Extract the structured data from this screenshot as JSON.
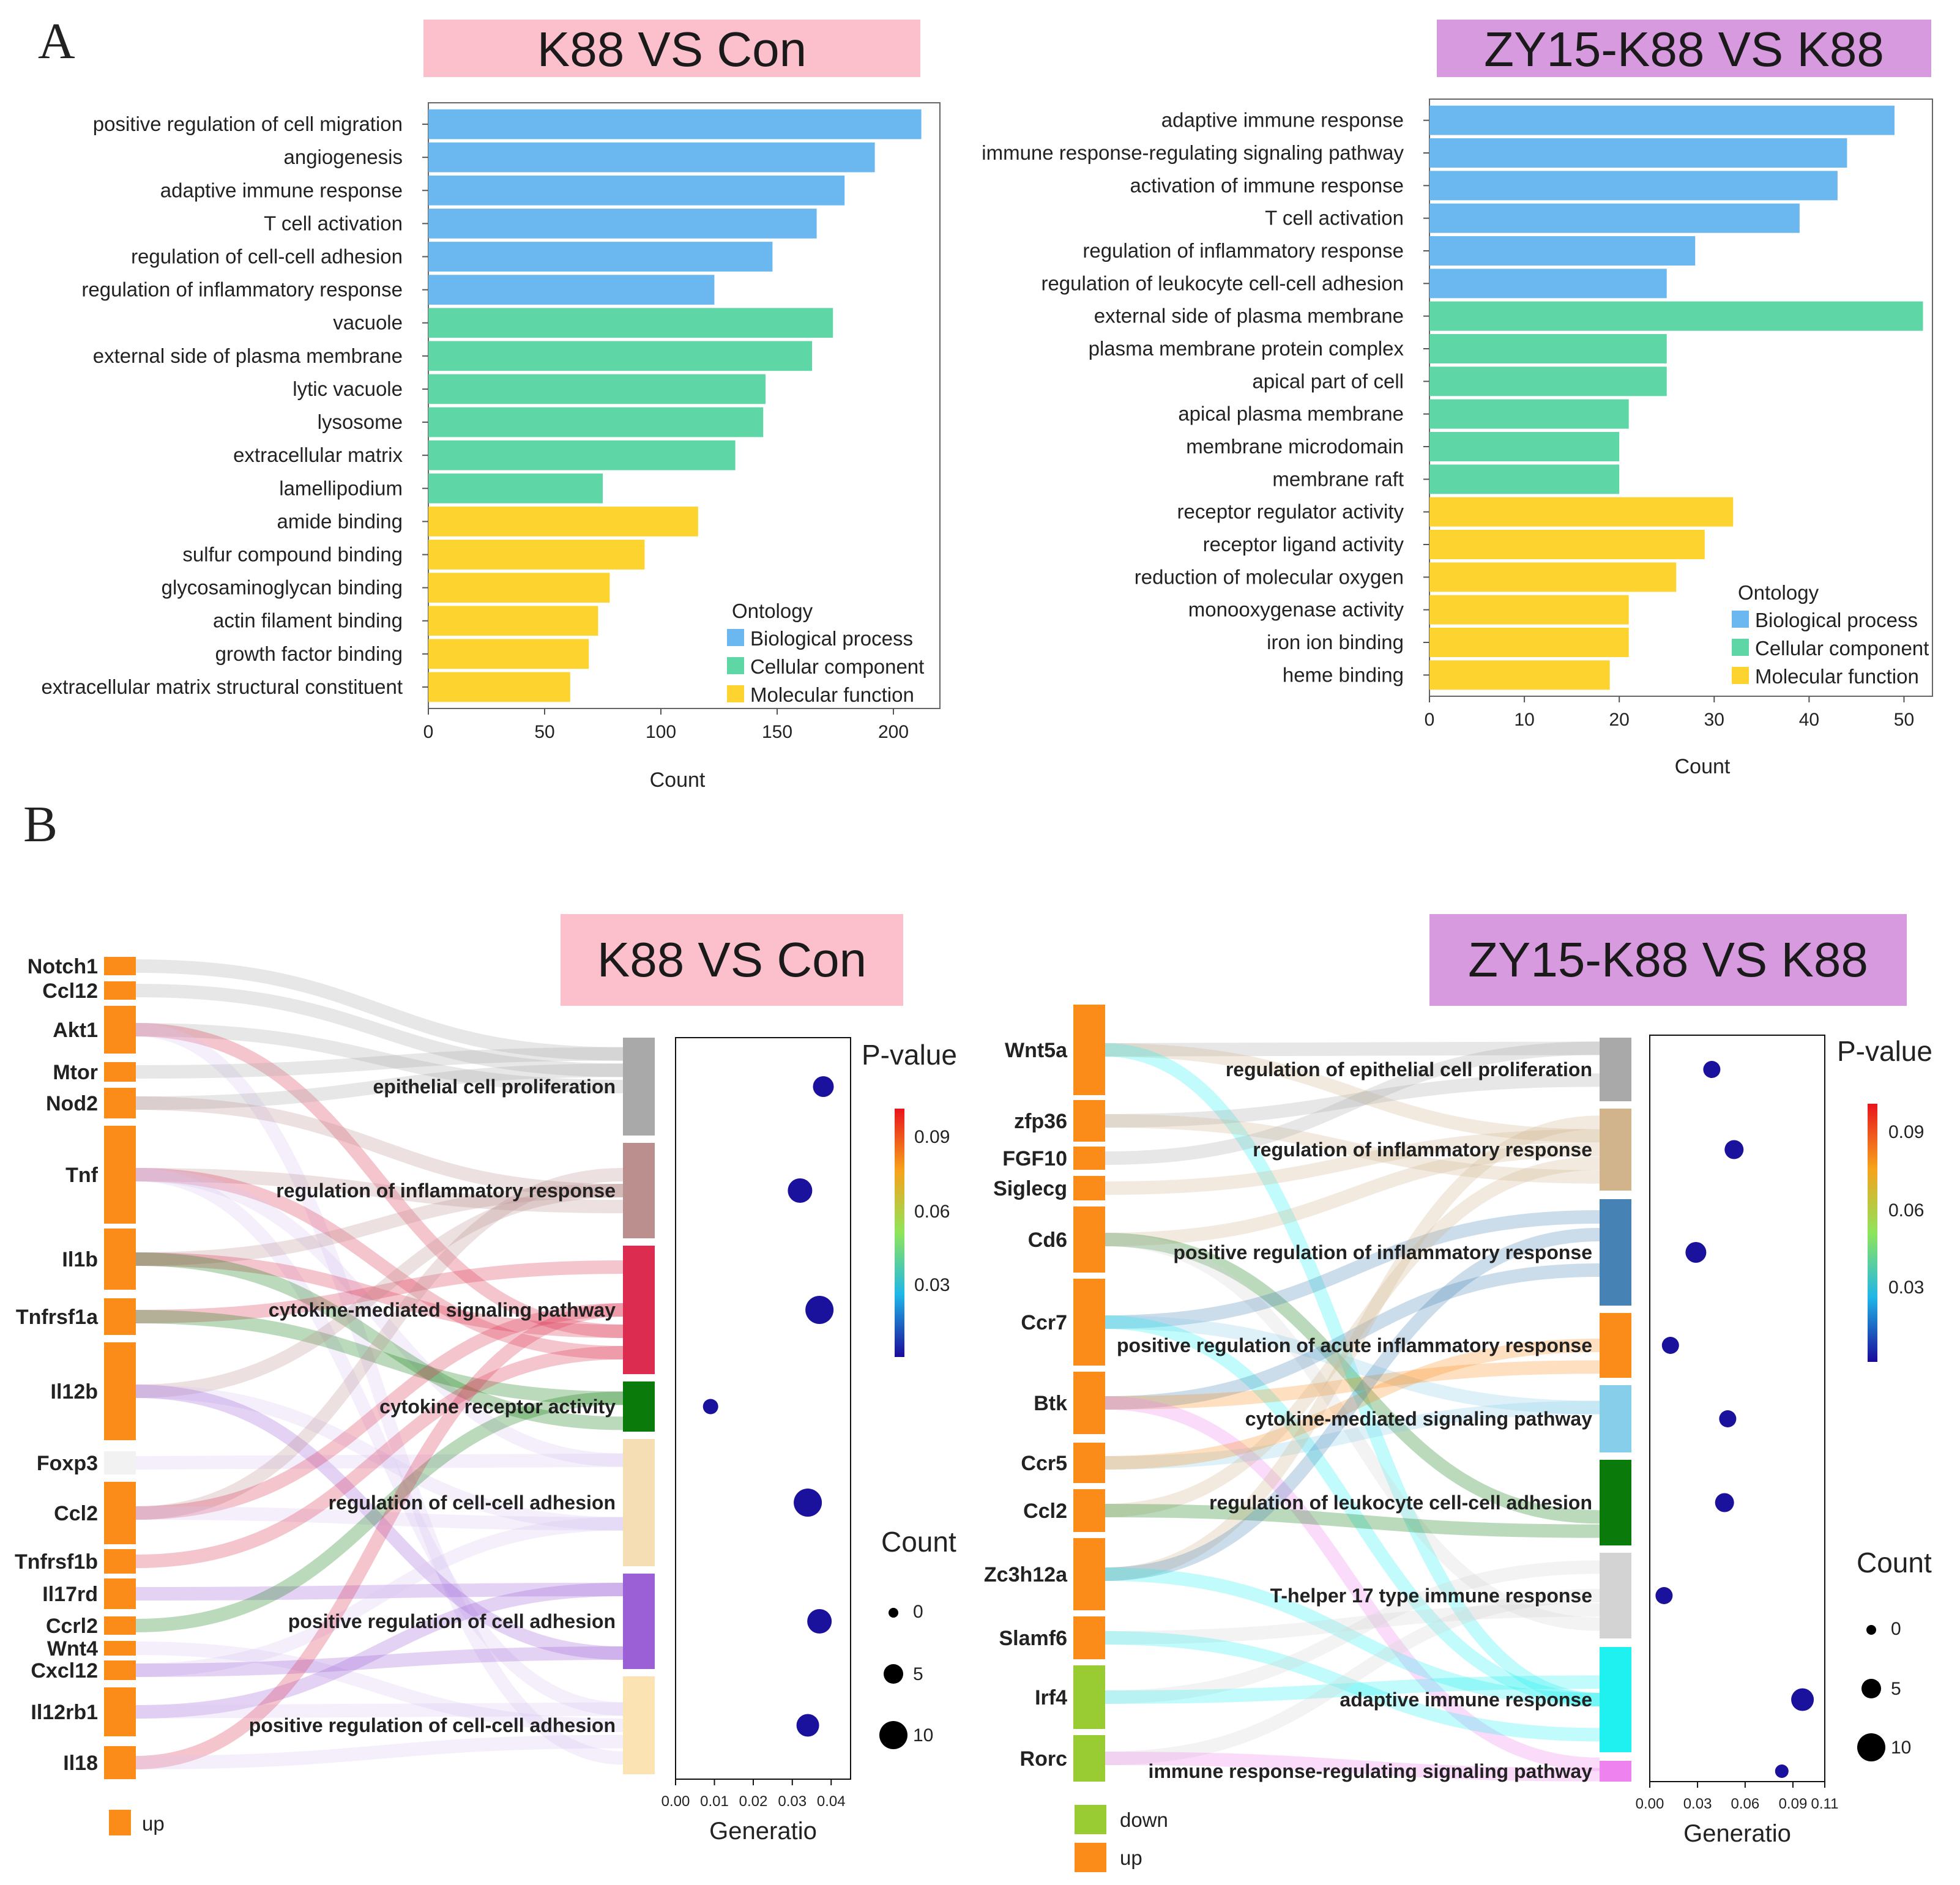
{
  "panel_labels": {
    "a": "A",
    "b": "B"
  },
  "colors": {
    "biological_process": "#6ab8ef",
    "cellular_component": "#5ed6a5",
    "molecular_function": "#fdd330",
    "up": "#fb8c1a",
    "down": "#99cc33",
    "dot": "#0a1a9a",
    "title_pink": "#fbc0cb",
    "title_purple": "#d79ade"
  },
  "chart_data": [
    {
      "id": "go_k88",
      "type": "bar",
      "orientation": "horizontal",
      "title": "K88 VS Con",
      "xlabel": "Count",
      "xlim": [
        0,
        220
      ],
      "xticks": [
        0,
        50,
        100,
        150,
        200
      ],
      "legend_title": "Ontology",
      "legend": [
        "Biological process",
        "Cellular component",
        "Molecular function"
      ],
      "categories": [
        "positive regulation of cell migration",
        "angiogenesis",
        "adaptive immune response",
        "T cell activation",
        "regulation of cell-cell adhesion",
        "regulation of inflammatory response",
        "vacuole",
        "external side of plasma membrane",
        "lytic vacuole",
        "lysosome",
        "extracellular matrix",
        "lamellipodium",
        "amide binding",
        "sulfur compound binding",
        "glycosaminoglycan binding",
        "actin filament binding",
        "growth factor binding",
        "extracellular matrix structural constituent"
      ],
      "values": [
        212,
        192,
        179,
        167,
        148,
        123,
        174,
        165,
        145,
        144,
        132,
        75,
        116,
        93,
        78,
        73,
        69,
        61
      ],
      "ontology": [
        0,
        0,
        0,
        0,
        0,
        0,
        1,
        1,
        1,
        1,
        1,
        1,
        2,
        2,
        2,
        2,
        2,
        2
      ]
    },
    {
      "id": "go_zy15",
      "type": "bar",
      "orientation": "horizontal",
      "title": "ZY15-K88 VS K88",
      "xlabel": "Count",
      "xlim": [
        0,
        53
      ],
      "xticks": [
        0,
        10,
        20,
        30,
        40,
        50
      ],
      "legend_title": "Ontology",
      "legend": [
        "Biological process",
        "Cellular component",
        "Molecular function"
      ],
      "categories": [
        "adaptive immune response",
        "immune response-regulating signaling pathway",
        "activation of immune response",
        "T cell activation",
        "regulation of inflammatory response",
        "regulation of leukocyte cell-cell adhesion",
        "external side of plasma membrane",
        "plasma membrane protein complex",
        "apical part of cell",
        "apical plasma membrane",
        "membrane microdomain",
        "membrane raft",
        "receptor regulator activity",
        "receptor ligand activity",
        "reduction of molecular oxygen",
        "monooxygenase activity",
        "iron ion binding",
        "heme binding"
      ],
      "values": [
        49,
        44,
        43,
        39,
        28,
        25,
        52,
        25,
        25,
        21,
        20,
        20,
        32,
        29,
        26,
        21,
        21,
        19
      ],
      "ontology": [
        0,
        0,
        0,
        0,
        0,
        0,
        1,
        1,
        1,
        1,
        1,
        1,
        2,
        2,
        2,
        2,
        2,
        2
      ]
    },
    {
      "id": "sankey_k88",
      "type": "scatter",
      "subtype": "sankey-dot",
      "title": "K88 VS Con",
      "xlabel": "Generatio",
      "xlim": [
        0,
        0.045
      ],
      "xticks": [
        "0.00",
        "0.01",
        "0.02",
        "0.03",
        "0.04"
      ],
      "pvalue_legend_title": "P-value",
      "pvalue_ticks": [
        "0.09",
        "0.06",
        "0.03"
      ],
      "pvalue_range": [
        0,
        0.1
      ],
      "count_legend_title": "Count",
      "count_ticks": [
        "0",
        "5",
        "10"
      ],
      "reg_legend": [
        "up"
      ],
      "genes": [
        {
          "name": "Notch1",
          "reg": "up"
        },
        {
          "name": "Ccl12",
          "reg": "up"
        },
        {
          "name": "Akt1",
          "reg": "up"
        },
        {
          "name": "Mtor",
          "reg": "up"
        },
        {
          "name": "Nod2",
          "reg": "up"
        },
        {
          "name": "Tnf",
          "reg": "up"
        },
        {
          "name": "Il1b",
          "reg": "up"
        },
        {
          "name": "Tnfrsf1a",
          "reg": "up"
        },
        {
          "name": "Il12b",
          "reg": "up"
        },
        {
          "name": "Foxp3",
          "reg": "none"
        },
        {
          "name": "Ccl2",
          "reg": "up"
        },
        {
          "name": "Tnfrsf1b",
          "reg": "up"
        },
        {
          "name": "Il17rd",
          "reg": "up"
        },
        {
          "name": "Ccrl2",
          "reg": "up"
        },
        {
          "name": "Wnt4",
          "reg": "up"
        },
        {
          "name": "Cxcl12",
          "reg": "up"
        },
        {
          "name": "Il12rb1",
          "reg": "up"
        },
        {
          "name": "Il18",
          "reg": "up"
        }
      ],
      "terms": [
        "epithelial cell proliferation",
        "regulation of inflammatory response",
        "cytokine-mediated signaling pathway",
        "cytokine receptor activity",
        "regulation of cell-cell adhesion",
        "positive regulation of cell adhesion",
        "positive regulation of cell-cell adhesion"
      ],
      "term_colors": [
        "#a9a9a9",
        "#bc8f8f",
        "#dc2d50",
        "#0a7a0a",
        "#f5deb3",
        "#9b5fd6",
        "#fce3b4"
      ],
      "generatio": [
        0.038,
        0.032,
        0.037,
        0.009,
        0.034,
        0.037,
        0.034
      ],
      "count": [
        6,
        8,
        10,
        3,
        10,
        8,
        7
      ],
      "pvalue": [
        0.001,
        0.001,
        0.001,
        0.001,
        0.001,
        0.001,
        0.001
      ]
    },
    {
      "id": "sankey_zy15",
      "type": "scatter",
      "subtype": "sankey-dot",
      "title": "ZY15-K88 VS K88",
      "xlabel": "Generatio",
      "xlim": [
        0,
        0.11
      ],
      "xticks": [
        "0.00",
        "0.03",
        "0.06",
        "0.09",
        "0.11"
      ],
      "pvalue_legend_title": "P-value",
      "pvalue_ticks": [
        "0.09",
        "0.06",
        "0.03"
      ],
      "pvalue_range": [
        0,
        0.1
      ],
      "count_legend_title": "Count",
      "count_ticks": [
        "0",
        "5",
        "10"
      ],
      "reg_legend": [
        "down",
        "up"
      ],
      "genes": [
        {
          "name": "Wnt5a",
          "reg": "up"
        },
        {
          "name": "zfp36",
          "reg": "up"
        },
        {
          "name": "FGF10",
          "reg": "up"
        },
        {
          "name": "Siglecg",
          "reg": "up"
        },
        {
          "name": "Cd6",
          "reg": "up"
        },
        {
          "name": "Ccr7",
          "reg": "up"
        },
        {
          "name": "Btk",
          "reg": "up"
        },
        {
          "name": "Ccr5",
          "reg": "up"
        },
        {
          "name": "Ccl2",
          "reg": "up"
        },
        {
          "name": "Zc3h12a",
          "reg": "up"
        },
        {
          "name": "Slamf6",
          "reg": "up"
        },
        {
          "name": "Irf4",
          "reg": "down"
        },
        {
          "name": "Rorc",
          "reg": "down"
        }
      ],
      "terms": [
        "regulation of epithelial cell proliferation",
        "regulation of inflammatory response",
        "positive regulation of inflammatory response",
        "positive regulation of acute inflammatory response",
        "cytokine-mediated signaling pathway",
        "regulation of leukocyte cell-cell adhesion",
        "T-helper 17 type immune response",
        "adaptive immune response",
        "immune response-regulating signaling pathway"
      ],
      "term_colors": [
        "#a9a9a9",
        "#d2b48c",
        "#4682b4",
        "#fb8c1a",
        "#87ceeb",
        "#0a7a0a",
        "#d3d3d3",
        "#1ff0f0",
        "#ee82ee"
      ],
      "generatio": [
        0.039,
        0.053,
        0.029,
        0.013,
        0.049,
        0.047,
        0.009,
        0.096,
        0.083
      ],
      "count": [
        4,
        5,
        6,
        4,
        4,
        5,
        4,
        7,
        2
      ],
      "pvalue": [
        0.001,
        0.001,
        0.001,
        0.001,
        0.001,
        0.001,
        0.001,
        0.001,
        0.001
      ]
    }
  ]
}
